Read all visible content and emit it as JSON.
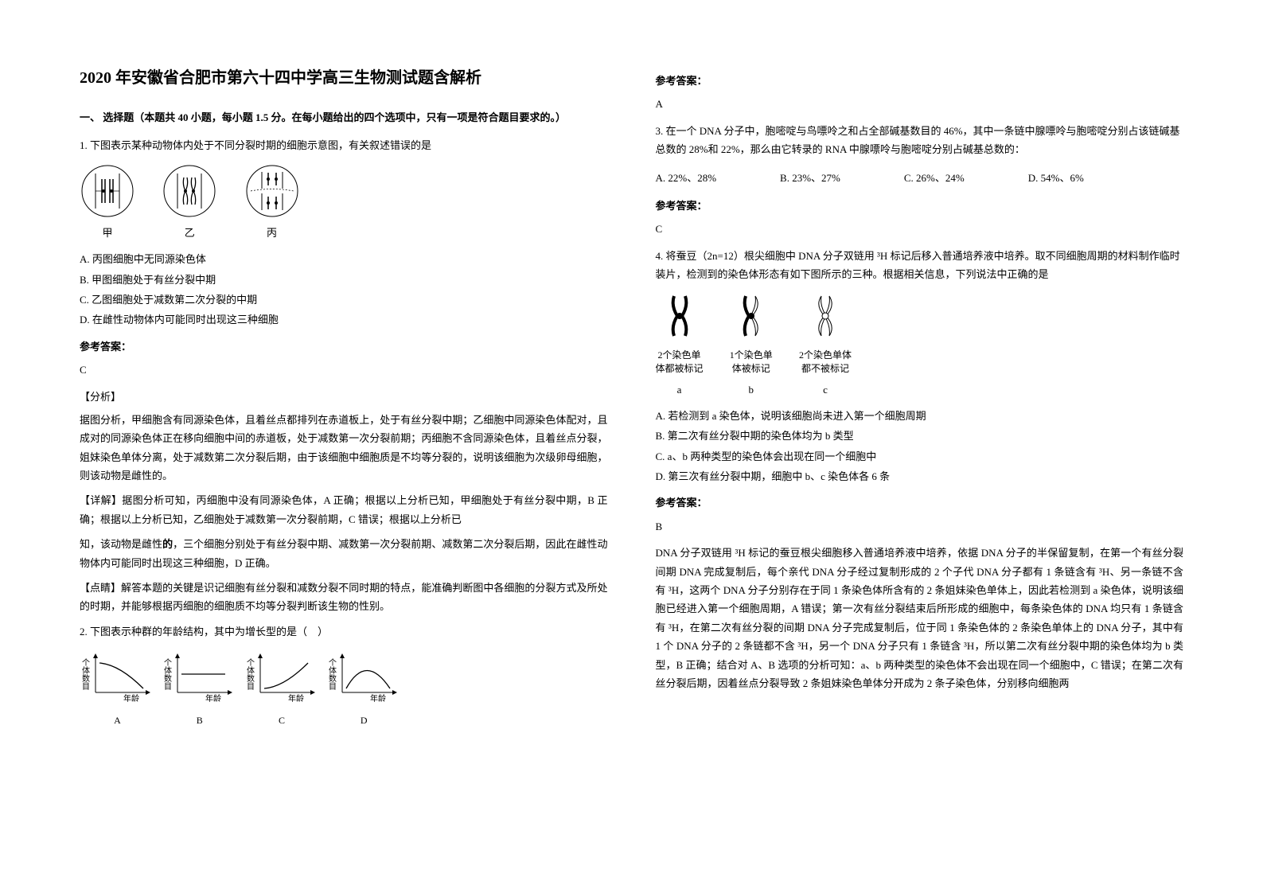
{
  "title": "2020 年安徽省合肥市第六十四中学高三生物测试题含解析",
  "section1_heading": "一、 选择题（本题共 40 小题，每小题 1.5 分。在每小题给出的四个选项中，只有一项是符合题目要求的。）",
  "q1": {
    "stem": "1. 下图表示某种动物体内处于不同分裂时期的细胞示意图，有关叙述错误的是",
    "cell_labels": [
      "甲",
      "乙",
      "丙"
    ],
    "options": {
      "A": "A. 丙图细胞中无同源染色体",
      "B": "B. 甲图细胞处于有丝分裂中期",
      "C": "C. 乙图细胞处于减数第二次分裂的中期",
      "D": "D. 在雌性动物体内可能同时出现这三种细胞"
    },
    "answer_label": "参考答案：",
    "answer": "C",
    "analysis_label": "【分析】",
    "analysis_p1": "据图分析，甲细胞含有同源染色体，且着丝点都排列在赤道板上，处于有丝分裂中期；乙细胞中同源染色体配对，且成对的同源染色体正在移向细胞中间的赤道板，处于减数第一次分裂前期；丙细胞不含同源染色体，且着丝点分裂，姐妹染色单体分离，处于减数第二次分裂后期，由于该细胞中细胞质是不均等分裂的，说明该细胞为次级卵母细胞，则该动物是雌性的。",
    "detail_p": "【详解】据图分析可知，丙细胞中没有同源染色体，A 正确；根据以上分析已知，甲细胞处于有丝分裂中期，B 正确；根据以上分析已知，乙细胞处于减数第一次分裂前期，C 错误；根据以上分析已",
    "detail_p2_prefix": "知，该动物是雌性",
    "detail_p2_bold": "的",
    "detail_p2_suffix": "，三个细胞分别处于有丝分裂中期、减数第一次分裂前期、减数第二次分裂后期，因此在雌性动物体内可能同时出现这三种细胞，D 正确。",
    "hint_p": "【点睛】解答本题的关键是识记细胞有丝分裂和减数分裂不同时期的特点，能准确判断图中各细胞的分裂方式及所处的时期，并能够根据丙细胞的细胞质不均等分裂判断该生物的性别。"
  },
  "q2": {
    "stem": "2. 下图表示种群的年龄结构，其中为增长型的是（　）",
    "axis_y": "个体数目",
    "axis_x": "年龄",
    "labels": [
      "A",
      "B",
      "C",
      "D"
    ],
    "answer_label": "参考答案：",
    "answer": "A"
  },
  "q3": {
    "stem": "3. 在一个 DNA 分子中，胞嘧啶与鸟嘌呤之和占全部碱基数目的 46%，其中一条链中腺嘌呤与胞嘧啶分别占该链碱基总数的 28%和 22%，那么由它转录的 RNA 中腺嘌呤与胞嘧啶分别占碱基总数的：",
    "options": {
      "A": "A. 22%、28%",
      "B": "B. 23%、27%",
      "C": "C. 26%、24%",
      "D": "D. 54%、6%"
    },
    "answer_label": "参考答案：",
    "answer": "C"
  },
  "q4": {
    "stem": "4. 将蚕豆（2n=12）根尖细胞中 DNA 分子双链用 ³H 标记后移入普通培养液中培养。取不同细胞周期的材料制作临时装片，检测到的染色体形态有如下图所示的三种。根据相关信息，下列说法中正确的是",
    "chrom": {
      "a_caption": "2个染色单\n体都被标记",
      "b_caption": "1个染色单\n体被标记",
      "c_caption": "2个染色单体\n都不被标记",
      "a_sub": "a",
      "b_sub": "b",
      "c_sub": "c"
    },
    "options": {
      "A": "A. 若检测到 a 染色体，说明该细胞尚未进入第一个细胞周期",
      "B": "B. 第二次有丝分裂中期的染色体均为 b 类型",
      "C": "C. a、b 两种类型的染色体会出现在同一个细胞中",
      "D": "D. 第三次有丝分裂中期，细胞中 b、c 染色体各 6 条"
    },
    "answer_label": "参考答案：",
    "answer": "B",
    "explanation": "DNA 分子双链用 ³H 标记的蚕豆根尖细胞移入普通培养液中培养，依据 DNA 分子的半保留复制，在第一个有丝分裂间期 DNA 完成复制后，每个亲代 DNA 分子经过复制形成的 2 个子代 DNA 分子都有 1 条链含有 ³H、另一条链不含有 ³H，这两个 DNA 分子分别存在于同 1 条染色体所含有的 2 条姐妹染色单体上，因此若检测到 a 染色体，说明该细胞已经进入第一个细胞周期，A 错误；第一次有丝分裂结束后所形成的细胞中，每条染色体的 DNA 均只有 1 条链含有 ³H，在第二次有丝分裂的间期 DNA 分子完成复制后，位于同 1 条染色体的 2 条染色单体上的 DNA 分子，其中有 1 个 DNA 分子的 2 条链都不含 ³H，另一个 DNA 分子只有 1 条链含 ³H，所以第二次有丝分裂中期的染色体均为 b 类型，B 正确；结合对 A、B 选项的分析可知：a、b 两种类型的染色体不会出现在同一个细胞中，C 错误；在第二次有丝分裂后期，因着丝点分裂导致 2 条姐妹染色单体分开成为 2 条子染色体，分别移向细胞两"
  }
}
